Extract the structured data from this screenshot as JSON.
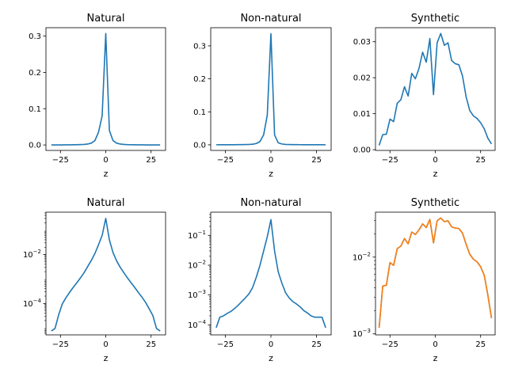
{
  "colors": {
    "blue": "#1f77b4",
    "orange": "#ff7f0e"
  },
  "chart_data": [
    {
      "type": "line",
      "title": "Natural",
      "xlabel": "z",
      "ylabel": "",
      "yscale": "linear",
      "xlim": [
        -33,
        33
      ],
      "ylim": [
        -0.015,
        0.323
      ],
      "xticks": [
        {
          "v": -25,
          "label": "−25"
        },
        {
          "v": 0,
          "label": "0"
        },
        {
          "v": 25,
          "label": "25"
        }
      ],
      "yticks": [
        {
          "v": 0,
          "label": "0.0"
        },
        {
          "v": 0.1,
          "label": "0.1"
        },
        {
          "v": 0.2,
          "label": "0.2"
        },
        {
          "v": 0.3,
          "label": "0.3"
        }
      ],
      "series": [
        {
          "color": "#1f77b4",
          "x": [
            -30,
            -27,
            -25,
            -22,
            -20,
            -17,
            -15,
            -12,
            -10,
            -8,
            -6,
            -4,
            -2,
            0,
            2,
            4,
            6,
            8,
            10,
            12,
            15,
            17,
            20,
            22,
            25,
            27,
            30
          ],
          "values": [
            0.0001,
            0.0001,
            0.0002,
            0.0003,
            0.0004,
            0.0006,
            0.0009,
            0.0015,
            0.0025,
            0.005,
            0.012,
            0.035,
            0.08,
            0.307,
            0.04,
            0.012,
            0.005,
            0.0025,
            0.0015,
            0.0009,
            0.0006,
            0.0004,
            0.0003,
            0.0002,
            0.0001,
            0.0001,
            0.0001
          ]
        }
      ]
    },
    {
      "type": "line",
      "title": "Non-natural",
      "xlabel": "z",
      "ylabel": "",
      "yscale": "linear",
      "xlim": [
        -33,
        33
      ],
      "ylim": [
        -0.017,
        0.355
      ],
      "xticks": [
        {
          "v": -25,
          "label": "−25"
        },
        {
          "v": 0,
          "label": "0"
        },
        {
          "v": 25,
          "label": "25"
        }
      ],
      "yticks": [
        {
          "v": 0,
          "label": "0.0"
        },
        {
          "v": 0.1,
          "label": "0.1"
        },
        {
          "v": 0.2,
          "label": "0.2"
        },
        {
          "v": 0.3,
          "label": "0.3"
        }
      ],
      "series": [
        {
          "color": "#1f77b4",
          "x": [
            -30,
            -28,
            -26,
            -24,
            -22,
            -20,
            -18,
            -16,
            -14,
            -12,
            -10,
            -8,
            -6,
            -4,
            -2,
            0,
            2,
            4,
            6,
            8,
            10,
            12,
            14,
            16,
            18,
            20,
            22,
            24,
            26,
            28,
            30
          ],
          "values": [
            8e-05,
            0.00018,
            0.0002,
            0.00024,
            0.00028,
            0.00035,
            0.00045,
            0.0006,
            0.0008,
            0.0011,
            0.0018,
            0.004,
            0.01,
            0.03,
            0.09,
            0.337,
            0.03,
            0.006,
            0.0025,
            0.0012,
            0.0008,
            0.0006,
            0.0005,
            0.0004,
            0.0003,
            0.00025,
            0.0002,
            0.00018,
            0.00018,
            0.00018,
            8e-05
          ]
        }
      ]
    },
    {
      "type": "line",
      "title": "Synthetic",
      "xlabel": "z",
      "ylabel": "",
      "yscale": "linear",
      "xlim": [
        -33,
        33
      ],
      "ylim": [
        -0.0002,
        0.0339
      ],
      "xticks": [
        {
          "v": -25,
          "label": "−25"
        },
        {
          "v": 0,
          "label": "0"
        },
        {
          "v": 25,
          "label": "25"
        }
      ],
      "yticks": [
        {
          "v": 0,
          "label": "0.00"
        },
        {
          "v": 0.01,
          "label": "0.01"
        },
        {
          "v": 0.02,
          "label": "0.02"
        },
        {
          "v": 0.03,
          "label": "0.03"
        }
      ],
      "series": [
        {
          "color": "#1f77b4",
          "x": [
            -31,
            -29,
            -27,
            -25,
            -23,
            -21,
            -19,
            -17,
            -15,
            -13,
            -11,
            -9,
            -7,
            -5,
            -3,
            -1,
            1,
            3,
            5,
            7,
            9,
            11,
            13,
            15,
            17,
            19,
            21,
            23,
            25,
            27,
            29,
            31
          ],
          "values": [
            0.0012,
            0.0042,
            0.0043,
            0.0085,
            0.0078,
            0.0129,
            0.0139,
            0.0175,
            0.0149,
            0.0212,
            0.0197,
            0.0226,
            0.0271,
            0.0243,
            0.0309,
            0.0153,
            0.0297,
            0.0323,
            0.029,
            0.0297,
            0.0248,
            0.0239,
            0.0236,
            0.0205,
            0.0147,
            0.0109,
            0.0094,
            0.0087,
            0.0075,
            0.0058,
            0.0032,
            0.0016
          ]
        }
      ]
    },
    {
      "type": "line",
      "title": "Natural",
      "xlabel": "z",
      "ylabel": "",
      "yscale": "log",
      "xlim": [
        -33,
        33
      ],
      "ylim": [
        5.2e-06,
        0.54
      ],
      "xticks": [
        {
          "v": -25,
          "label": "−25"
        },
        {
          "v": 0,
          "label": "0"
        },
        {
          "v": 25,
          "label": "25"
        }
      ],
      "yticks": [
        {
          "v": 0.0001,
          "base": "10",
          "exp": "−4"
        },
        {
          "v": 0.01,
          "base": "10",
          "exp": "−2"
        }
      ],
      "series": [
        {
          "color": "#1f77b4",
          "x": [
            -30,
            -28,
            -26,
            -24,
            -22,
            -20,
            -18,
            -16,
            -14,
            -12,
            -10,
            -8,
            -6,
            -4,
            -2,
            0,
            2,
            4,
            6,
            8,
            10,
            12,
            14,
            16,
            18,
            20,
            22,
            24,
            26,
            28,
            30
          ],
          "values": [
            7.5e-06,
            9.5e-06,
            3.4e-05,
            9.5e-05,
            0.00017,
            0.00028,
            0.00045,
            0.0007,
            0.0011,
            0.0018,
            0.0032,
            0.0057,
            0.011,
            0.025,
            0.06,
            0.3,
            0.04,
            0.012,
            0.0055,
            0.003,
            0.0018,
            0.0011,
            0.0007,
            0.00045,
            0.00028,
            0.00018,
            0.00011,
            6e-05,
            3.2e-05,
            9.5e-06,
            7.5e-06
          ]
        }
      ]
    },
    {
      "type": "line",
      "title": "Non-natural",
      "xlabel": "z",
      "ylabel": "",
      "yscale": "log",
      "xlim": [
        -33,
        33
      ],
      "ylim": [
        4.6e-05,
        0.6
      ],
      "xticks": [
        {
          "v": -25,
          "label": "−25"
        },
        {
          "v": 0,
          "label": "0"
        },
        {
          "v": 25,
          "label": "25"
        }
      ],
      "yticks": [
        {
          "v": 0.0001,
          "base": "10",
          "exp": "−4"
        },
        {
          "v": 0.001,
          "base": "10",
          "exp": "−3"
        },
        {
          "v": 0.01,
          "base": "10",
          "exp": "−2"
        },
        {
          "v": 0.1,
          "base": "10",
          "exp": "−1"
        }
      ],
      "series": [
        {
          "color": "#1f77b4",
          "x": [
            -30,
            -28,
            -26,
            -24,
            -22,
            -20,
            -18,
            -16,
            -14,
            -12,
            -10,
            -8,
            -6,
            -4,
            -2,
            0,
            2,
            4,
            6,
            8,
            10,
            12,
            14,
            16,
            18,
            20,
            22,
            24,
            26,
            28,
            30
          ],
          "values": [
            8e-05,
            0.00018,
            0.0002,
            0.00024,
            0.00028,
            0.00035,
            0.00045,
            0.0006,
            0.0008,
            0.0011,
            0.0018,
            0.004,
            0.01,
            0.03,
            0.09,
            0.337,
            0.03,
            0.006,
            0.0025,
            0.0012,
            0.0008,
            0.0006,
            0.0005,
            0.0004,
            0.0003,
            0.00025,
            0.0002,
            0.00018,
            0.00018,
            0.00018,
            8e-05
          ]
        }
      ]
    },
    {
      "type": "line",
      "title": "Synthetic",
      "xlabel": "z",
      "ylabel": "",
      "yscale": "log",
      "xlim": [
        -33,
        33
      ],
      "ylim": [
        0.00097,
        0.0385
      ],
      "xticks": [
        {
          "v": -25,
          "label": "−25"
        },
        {
          "v": 0,
          "label": "0"
        },
        {
          "v": 25,
          "label": "25"
        }
      ],
      "yticks": [
        {
          "v": 0.001,
          "base": "10",
          "exp": "−3"
        },
        {
          "v": 0.01,
          "base": "10",
          "exp": "−2"
        }
      ],
      "series": [
        {
          "color": "#1f77b4",
          "x": [
            -31,
            -29,
            -27,
            -25,
            -23,
            -21,
            -19,
            -17,
            -15,
            -13,
            -11,
            -9,
            -7,
            -5,
            -3,
            -1,
            1,
            3,
            5,
            7,
            9,
            11,
            13,
            15,
            17,
            19,
            21,
            23,
            25,
            27,
            29,
            31
          ],
          "values": [
            0.0012,
            0.0042,
            0.0043,
            0.0085,
            0.0078,
            0.0129,
            0.0139,
            0.0175,
            0.0149,
            0.0212,
            0.0197,
            0.0226,
            0.0271,
            0.0243,
            0.0309,
            0.0153,
            0.0297,
            0.0323,
            0.029,
            0.0297,
            0.0248,
            0.0239,
            0.0236,
            0.0205,
            0.0147,
            0.0109,
            0.0094,
            0.0087,
            0.0075,
            0.0058,
            0.0032,
            0.0016
          ]
        },
        {
          "color": "#ff7f0e",
          "x": [
            -31,
            -29,
            -27,
            -25,
            -23,
            -21,
            -19,
            -17,
            -15,
            -13,
            -11,
            -9,
            -7,
            -5,
            -3,
            -1,
            1,
            3,
            5,
            7,
            9,
            11,
            13,
            15,
            17,
            19,
            21,
            23,
            25,
            27,
            29,
            31
          ],
          "values": [
            0.0012,
            0.0042,
            0.0043,
            0.0085,
            0.0078,
            0.0129,
            0.0139,
            0.0175,
            0.0149,
            0.0212,
            0.0197,
            0.0226,
            0.0271,
            0.0243,
            0.0309,
            0.0153,
            0.0297,
            0.0323,
            0.029,
            0.0297,
            0.0248,
            0.0239,
            0.0236,
            0.0205,
            0.0147,
            0.0109,
            0.0094,
            0.0087,
            0.0075,
            0.0058,
            0.0032,
            0.0016
          ]
        }
      ]
    }
  ]
}
